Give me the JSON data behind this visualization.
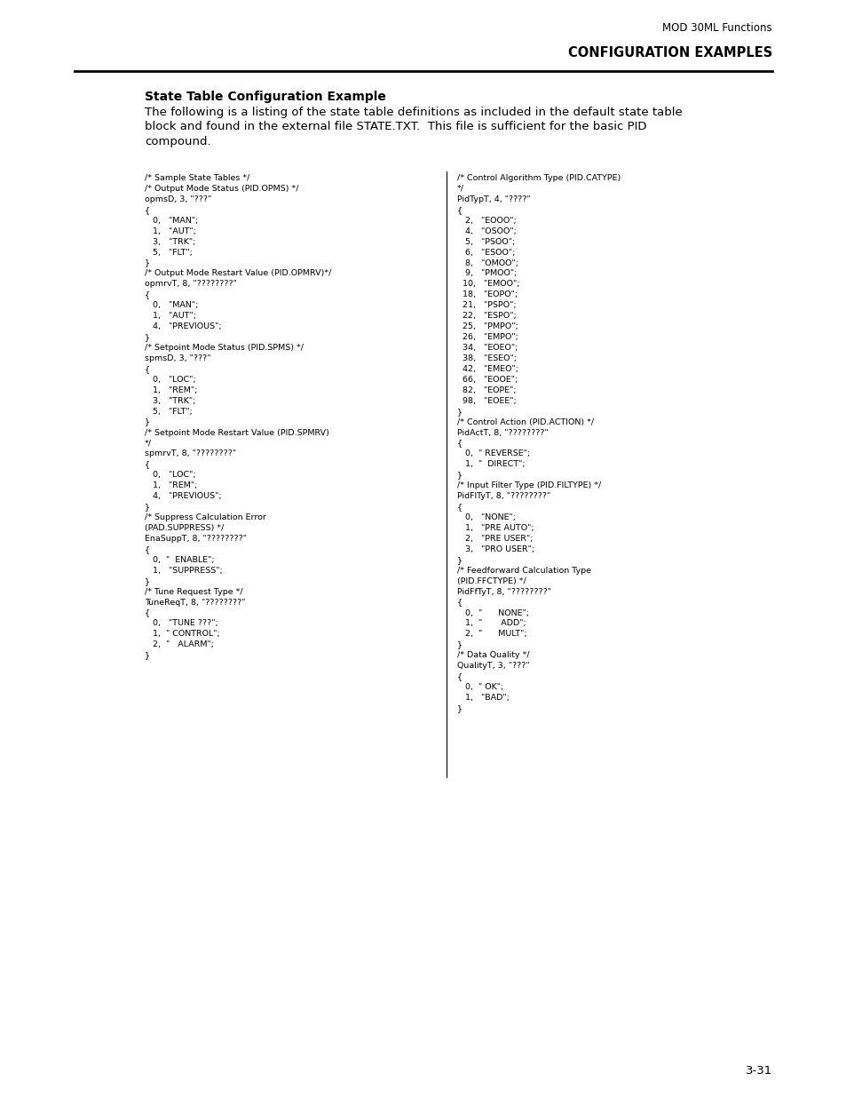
{
  "page_header_right": "MOD 30ML Functions",
  "section_header": "CONFIGURATION EXAMPLES",
  "section_title": "State Table Configuration Example",
  "section_body": "The following is a listing of the state table definitions as included in the default state table\nblock and found in the external file STATE.TXT.  This file is sufficient for the basic PID\ncompound.",
  "page_number": "3-31",
  "left_code": "/* Sample State Tables */\n/* Output Mode Status (PID.OPMS) */\nopmsD, 3, \"???\"\n{\n   0,   \"MAN\";\n   1,   \"AUT\";\n   3,   \"TRK\";\n   5,   \"FLT\";\n}\n/* Output Mode Restart Value (PID.OPMRV)*/\nopmrvT, 8, \"????????\"\n{\n   0,   \"MAN\";\n   1,   \"AUT\";\n   4,   \"PREVIOUS\";\n}\n/* Setpoint Mode Status (PID.SPMS) */\nspmsD, 3, \"???\"\n{\n   0,   \"LOC\";\n   1,   \"REM\";\n   3,   \"TRK\";\n   5,   \"FLT\";\n}\n/* Setpoint Mode Restart Value (PID.SPMRV)\n*/\nspmrvT, 8, \"????????\"\n{\n   0,   \"LOC\";\n   1,   \"REM\";\n   4,   \"PREVIOUS\";\n}\n/* Suppress Calculation Error\n(PAD.SUPPRESS) */\nEnaSuppT, 8, \"????????\"\n{\n   0,  \"  ENABLE\";\n   1,   \"SUPPRESS\";\n}\n/* Tune Request Type */\nTuneReqT, 8, \"????????\"\n{\n   0,   \"TUNE ???\";\n   1,  \" CONTROL\";\n   2,  \"   ALARM\";\n}",
  "right_code": "/* Control Algorithm Type (PID.CATYPE)\n*/\nPidTypT, 4, \"????\"\n{\n   2,   \"EOOO\";\n   4,   \"OSOO\";\n   5,   \"PSOO\";\n   6,   \"ESOO\";\n   8,   \"OMOO\";\n   9,   \"PMOO\";\n  10,   \"EMOO\";\n  18,   \"EOPO\";\n  21,   \"PSPO\";\n  22,   \"ESPO\";\n  25,   \"PMPO\";\n  26,   \"EMPO\";\n  34,   \"EOEO\";\n  38,   \"ESEO\";\n  42,   \"EMEO\";\n  66,   \"EOOE\";\n  82,   \"EOPE\";\n  98,   \"EOEE\";\n}\n/* Control Action (PID.ACTION) */\nPidActT, 8, \"????????\"\n{\n   0,  \" REVERSE\";\n   1,  \"  DIRECT\";\n}\n/* Input Filter Type (PID.FILTYPE) */\nPidFlTyT, 8, \"????????\"\n{\n   0,   \"NONE\";\n   1,   \"PRE AUTO\";\n   2,   \"PRE USER\";\n   3,   \"PRO USER\";\n}\n/* Feedforward Calculation Type\n(PID.FFCTYPE) */\nPidFfTyT, 8, \"????????\"\n{\n   0,  \"      NONE\";\n   1,  \"       ADD\";\n   2,  \"      MULT\";\n}\n/* Data Quality */\nQualityT, 3, \"???\"\n{\n   0,  \" OK\";\n   1,   \"BAD\";\n}",
  "bg_color": "#ffffff",
  "text_color": "#000000",
  "code_font_size": 6.8,
  "body_font_size": 9.5,
  "title_font_size": 10,
  "header_font_size": 8.5,
  "section_header_font_size": 10.5
}
